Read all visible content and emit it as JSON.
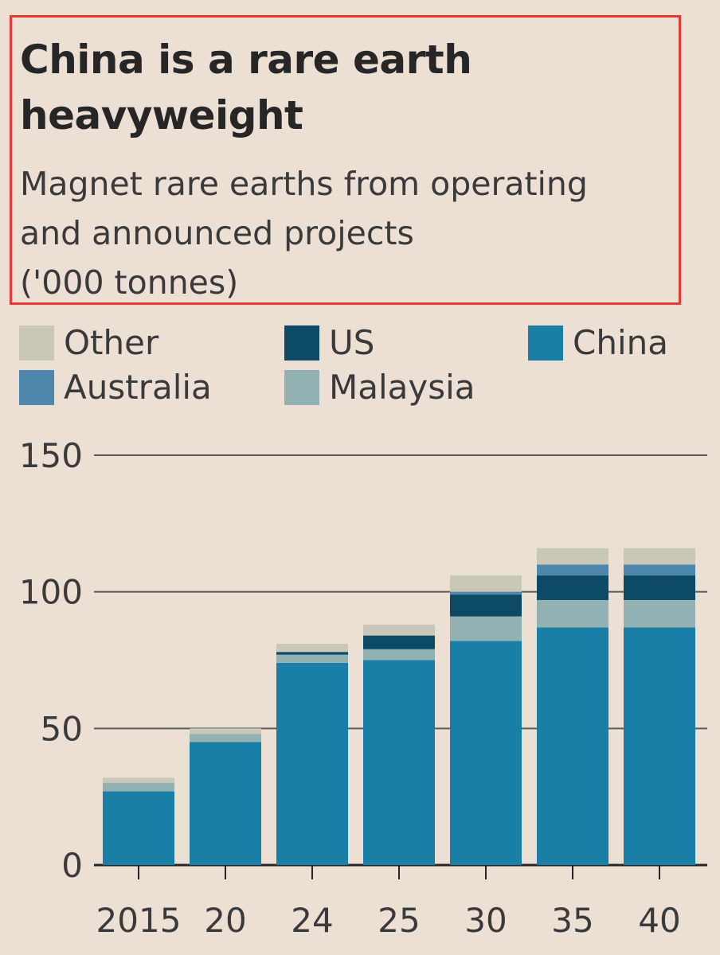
{
  "header": {
    "title_lines": [
      "China is a rare earth",
      "heavyweight"
    ],
    "subtitle_lines": [
      "Magnet rare earths from operating",
      "and announced projects",
      "('000 tonnes)"
    ]
  },
  "legend": [
    {
      "name": "Other",
      "color": "#c9c8b8"
    },
    {
      "name": "US",
      "color": "#0c4a66"
    },
    {
      "name": "China",
      "color": "#1a7fa6"
    },
    {
      "name": "Australia",
      "color": "#4d87ab"
    },
    {
      "name": "Malaysia",
      "color": "#92b1b3"
    }
  ],
  "chart_data": {
    "type": "bar",
    "stacked": true,
    "categories": [
      "2015",
      "20",
      "24",
      "25",
      "30",
      "35",
      "40"
    ],
    "series": [
      {
        "name": "China",
        "color": "#1a7fa6",
        "values": [
          27,
          45,
          74,
          75,
          82,
          87,
          87
        ]
      },
      {
        "name": "Malaysia",
        "color": "#92b1b3",
        "values": [
          3,
          3,
          3,
          4,
          9,
          10,
          10
        ]
      },
      {
        "name": "US",
        "color": "#0c4a66",
        "values": [
          0,
          0,
          1,
          5,
          8,
          9,
          9
        ]
      },
      {
        "name": "Australia",
        "color": "#4d87ab",
        "values": [
          0,
          0,
          0,
          0,
          1,
          4,
          4
        ]
      },
      {
        "name": "Other",
        "color": "#c9c8b8",
        "values": [
          2,
          2,
          3,
          4,
          6,
          6,
          6
        ]
      }
    ],
    "ylim": [
      0,
      150
    ],
    "yticks": [
      "0",
      "50",
      "100",
      "150"
    ],
    "grid": true,
    "legend_position": "top"
  }
}
